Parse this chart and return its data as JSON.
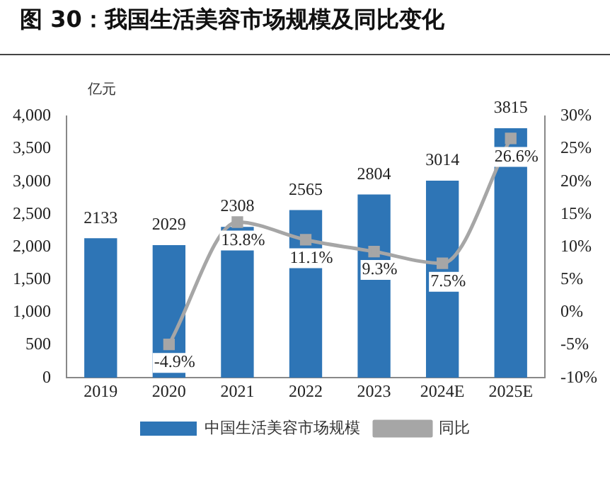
{
  "chart_data": {
    "type": "bar",
    "title": "图 30：我国生活美容市场规模及同比变化",
    "ylabel": "亿元",
    "categories": [
      "2019",
      "2020",
      "2021",
      "2022",
      "2023",
      "2024E",
      "2025E"
    ],
    "series": [
      {
        "name": "中国生活美容市场规模",
        "color": "#2e75b6",
        "values": [
          2133,
          2029,
          2308,
          2565,
          2804,
          3014,
          3815
        ],
        "value_labels": [
          "2133",
          "2029",
          "2308",
          "2565",
          "2804",
          "3014",
          "3815"
        ]
      },
      {
        "name": "同比",
        "type": "line",
        "axis": "y2",
        "color": "#a6a6a6",
        "marker": "square",
        "values": [
          null,
          -4.9,
          13.8,
          11.1,
          9.3,
          7.5,
          26.6
        ],
        "value_labels": [
          null,
          "-4.9%",
          "13.8%",
          "11.1%",
          "9.3%",
          "7.5%",
          "26.6%"
        ]
      }
    ],
    "ylim": [
      0,
      4000
    ],
    "yticks": [
      {
        "value": 0,
        "label": "0"
      },
      {
        "value": 500,
        "label": "500"
      },
      {
        "value": 1000,
        "label": "1,000"
      },
      {
        "value": 1500,
        "label": "1,500"
      },
      {
        "value": 2000,
        "label": "2,000"
      },
      {
        "value": 2500,
        "label": "2,500"
      },
      {
        "value": 3000,
        "label": "3,000"
      },
      {
        "value": 3500,
        "label": "3,500"
      },
      {
        "value": 4000,
        "label": "4,000"
      }
    ],
    "y2lim": [
      -10,
      30
    ],
    "y2ticks": [
      {
        "value": -10,
        "label": "-10%"
      },
      {
        "value": -5,
        "label": "-5%"
      },
      {
        "value": 0,
        "label": "0%"
      },
      {
        "value": 5,
        "label": "5%"
      },
      {
        "value": 10,
        "label": "10%"
      },
      {
        "value": 15,
        "label": "15%"
      },
      {
        "value": 20,
        "label": "20%"
      },
      {
        "value": 25,
        "label": "25%"
      },
      {
        "value": 30,
        "label": "30%"
      }
    ],
    "grid": false,
    "legend": "bottom"
  }
}
